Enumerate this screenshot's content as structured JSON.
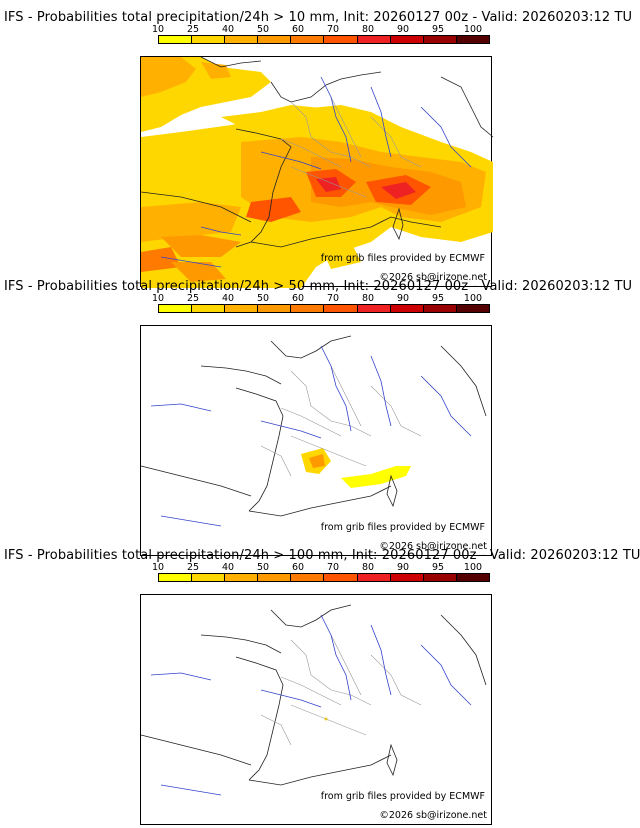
{
  "colorbar": {
    "ticks": [
      "10",
      "25",
      "40",
      "50",
      "60",
      "70",
      "80",
      "90",
      "95",
      "100"
    ],
    "colors": [
      "#ffff00",
      "#ffd700",
      "#ffb000",
      "#ff9900",
      "#ff7a00",
      "#ff5500",
      "#ee2222",
      "#cc0000",
      "#990000",
      "#550000"
    ]
  },
  "panels": [
    {
      "title": "IFS - Probabilities total precipitation/24h > 10 mm, Init: 20260127 00z - Valid: 20260203:12 TU",
      "credit_source": "from grib files provided by ECMWF",
      "credit_copyright": "©2026 sb@irizone.net"
    },
    {
      "title": "IFS - Probabilities total precipitation/24h > 50 mm, Init: 20260127 00z - Valid: 20260203:12 TU",
      "credit_source": "from grib files provided by ECMWF",
      "credit_copyright": "©2026 sb@irizone.net"
    },
    {
      "title": "IFS - Probabilities total precipitation/24h > 100 mm, Init: 20260127 00z - Valid: 20260203:12 TU",
      "credit_source": "from grib files provided by ECMWF",
      "credit_copyright": "©2026 sb@irizone.net"
    }
  ]
}
